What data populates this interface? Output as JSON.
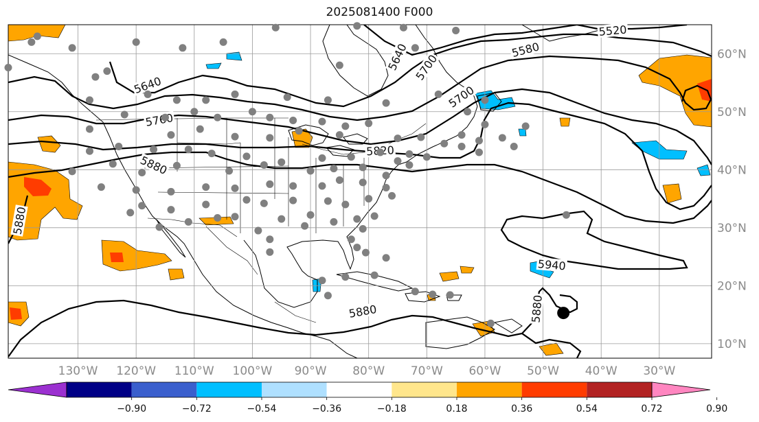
{
  "title": "2025081400 F000",
  "map": {
    "lon_range": [
      -142,
      -21
    ],
    "lat_range": [
      7.5,
      65
    ],
    "meridians": [
      -130,
      -120,
      -110,
      -100,
      -90,
      -80,
      -70,
      -60,
      -50,
      -40,
      -30
    ],
    "parallels": [
      10,
      20,
      30,
      40,
      50,
      60
    ],
    "lon_labels": [
      "130°W",
      "120°W",
      "110°W",
      "100°W",
      "90°W",
      "80°W",
      "70°W",
      "60°W",
      "50°W",
      "40°W",
      "30°W"
    ],
    "lat_labels": [
      "10°N",
      "20°N",
      "30°N",
      "40°N",
      "50°N",
      "60°N"
    ]
  },
  "contour_labels": [
    {
      "text": "5520",
      "lon": -38,
      "lat": 63.9,
      "rot": -5
    },
    {
      "text": "5580",
      "lon": -53,
      "lat": 60.6,
      "rot": -15
    },
    {
      "text": "5640",
      "lon": -75,
      "lat": 59.4,
      "rot": -65
    },
    {
      "text": "5640",
      "lon": -118,
      "lat": 54.5,
      "rot": -20
    },
    {
      "text": "5700",
      "lon": -70,
      "lat": 57.6,
      "rot": -55
    },
    {
      "text": "5700",
      "lon": -64,
      "lat": 52.5,
      "rot": -35
    },
    {
      "text": "5760",
      "lon": -116,
      "lat": 48.5,
      "rot": -10
    },
    {
      "text": "5820",
      "lon": -78,
      "lat": 43.2,
      "rot": -3
    },
    {
      "text": "5880",
      "lon": -117,
      "lat": 40.7,
      "rot": 25
    },
    {
      "text": "5880",
      "lon": -140,
      "lat": 31.2,
      "rot": -80
    },
    {
      "text": "5940",
      "lon": -48.5,
      "lat": 23.5,
      "rot": 5
    },
    {
      "text": "5880",
      "lon": -51,
      "lat": 16,
      "rot": -85
    },
    {
      "text": "5880",
      "lon": -81,
      "lat": 15.5,
      "rot": -10
    }
  ],
  "station_dots": [
    [
      -142,
      57.6
    ],
    [
      -138,
      62
    ],
    [
      -137,
      63
    ],
    [
      -131,
      61
    ],
    [
      -125,
      57
    ],
    [
      -120,
      62
    ],
    [
      -112,
      61
    ],
    [
      -105,
      62
    ],
    [
      -96,
      64.5
    ],
    [
      -82,
      64.8
    ],
    [
      -74,
      64.5
    ],
    [
      -72,
      61
    ],
    [
      -65,
      64
    ],
    [
      -85,
      58
    ],
    [
      -127,
      56
    ],
    [
      -128,
      52
    ],
    [
      -118,
      53
    ],
    [
      -113,
      52
    ],
    [
      -108,
      52
    ],
    [
      -103,
      53
    ],
    [
      -94,
      52.5
    ],
    [
      -87,
      52
    ],
    [
      -77,
      51.5
    ],
    [
      -68,
      53
    ],
    [
      -60,
      52
    ],
    [
      -122,
      49.5
    ],
    [
      -115,
      49
    ],
    [
      -110,
      50
    ],
    [
      -106,
      49
    ],
    [
      -100,
      50
    ],
    [
      -97,
      49
    ],
    [
      -93,
      48.5
    ],
    [
      -88,
      48.3
    ],
    [
      -84,
      47.5
    ],
    [
      -80,
      48
    ],
    [
      -128,
      47
    ],
    [
      -114,
      46
    ],
    [
      -109,
      47
    ],
    [
      -103,
      45.7
    ],
    [
      -97,
      45.5
    ],
    [
      -92,
      46.7
    ],
    [
      -85,
      46
    ],
    [
      -75,
      45.4
    ],
    [
      -71,
      45.6
    ],
    [
      -64,
      46
    ],
    [
      -61,
      45
    ],
    [
      -67,
      44.5
    ],
    [
      -57,
      45.5
    ],
    [
      -53,
      47.5
    ],
    [
      -60,
      47.8
    ],
    [
      -63,
      50
    ],
    [
      -128,
      43.2
    ],
    [
      -123,
      44
    ],
    [
      -117,
      43.5
    ],
    [
      -111,
      43.5
    ],
    [
      -107,
      42.8
    ],
    [
      -101,
      42.3
    ],
    [
      -95,
      41.3
    ],
    [
      -88,
      42
    ],
    [
      -83,
      42.2
    ],
    [
      -78,
      43
    ],
    [
      -73,
      42.7
    ],
    [
      -70,
      42.2
    ],
    [
      -64,
      44
    ],
    [
      -61,
      43
    ],
    [
      -55,
      44
    ],
    [
      -131,
      39.7
    ],
    [
      -124,
      41
    ],
    [
      -119,
      39.5
    ],
    [
      -113,
      40.7
    ],
    [
      -104,
      39.8
    ],
    [
      -98,
      40.8
    ],
    [
      -90,
      39.8
    ],
    [
      -86,
      40.2
    ],
    [
      -81,
      40.4
    ],
    [
      -75,
      41.5
    ],
    [
      -73,
      40.8
    ],
    [
      -77,
      39
    ],
    [
      -126,
      37
    ],
    [
      -120,
      36.5
    ],
    [
      -114,
      36.2
    ],
    [
      -108,
      37
    ],
    [
      -103,
      36.8
    ],
    [
      -97,
      37.5
    ],
    [
      -93,
      37.2
    ],
    [
      -88,
      37.2
    ],
    [
      -85,
      38.2
    ],
    [
      -81,
      37.8
    ],
    [
      -77,
      36.9
    ],
    [
      -76,
      35.5
    ],
    [
      -119,
      33.8
    ],
    [
      -114,
      33.1
    ],
    [
      -108,
      34
    ],
    [
      -101,
      34.8
    ],
    [
      -98,
      34.2
    ],
    [
      -93,
      34.7
    ],
    [
      -87,
      34.6
    ],
    [
      -84,
      34
    ],
    [
      -80,
      35
    ],
    [
      -79,
      32
    ],
    [
      -121,
      32.6
    ],
    [
      -116,
      30.1
    ],
    [
      -111,
      31
    ],
    [
      -106,
      31.7
    ],
    [
      -103,
      31.9
    ],
    [
      -99,
      29.5
    ],
    [
      -95,
      31.5
    ],
    [
      -90,
      32.2
    ],
    [
      -86,
      31
    ],
    [
      -82,
      31.5
    ],
    [
      -81,
      29.8
    ],
    [
      -83,
      28
    ],
    [
      -91,
      30.3
    ],
    [
      -97,
      28
    ],
    [
      -46,
      32.2
    ],
    [
      -97,
      25.8
    ],
    [
      -80.5,
      25.7
    ],
    [
      -82,
      26.6
    ],
    [
      -77,
      24.8
    ],
    [
      -79,
      21.8
    ],
    [
      -72,
      19
    ],
    [
      -69,
      18.5
    ],
    [
      -66,
      18.4
    ],
    [
      -59,
      13.5
    ],
    [
      -84,
      21.5
    ],
    [
      -88,
      20.9
    ],
    [
      -87,
      18.3
    ]
  ],
  "tc_marker": {
    "lon": -46.5,
    "lat": 15.3
  },
  "colorbar": {
    "colors": [
      "#9b30d0",
      "#000086",
      "#3a5fcd",
      "#00bfff",
      "#afe0ff",
      "#ffffff",
      "#ffe68c",
      "#ffa500",
      "#ff3c00",
      "#b22222",
      "#ff86c0"
    ],
    "tick_labels": [
      "−0.90",
      "−0.72",
      "−0.54",
      "−0.36",
      "−0.18",
      "0.18",
      "0.36",
      "0.54",
      "0.72",
      "0.90"
    ]
  }
}
